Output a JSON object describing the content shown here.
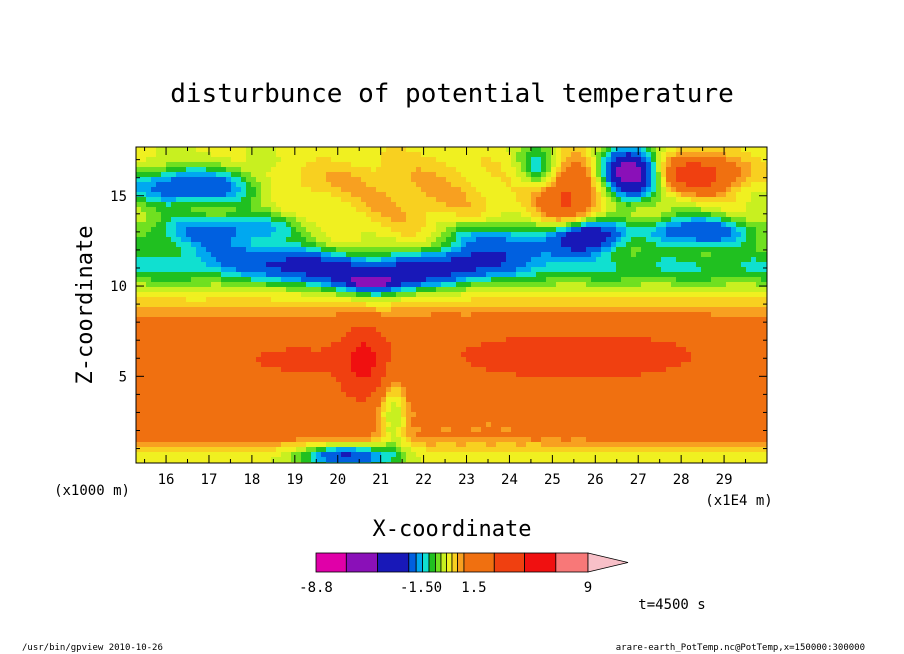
{
  "chart_data": {
    "type": "heatmap",
    "title": "disturbunce of potential temperature",
    "xlabel": "X-coordinate",
    "ylabel": "Z-coordinate",
    "x_unit_label": "(x1E4 m)",
    "y_unit_label": "(x1000 m)",
    "xlim": [
      15.3,
      30.0
    ],
    "ylim": [
      0.2,
      17.7
    ],
    "x_ticks": [
      16,
      17,
      18,
      19,
      20,
      21,
      22,
      23,
      24,
      25,
      26,
      27,
      28,
      29
    ],
    "y_ticks": [
      5,
      10,
      15
    ],
    "time_label": "t=4500 s",
    "colorbar": {
      "levels": [
        -8.8,
        -7,
        -5,
        -3.5,
        -2.5,
        -2,
        -1.5,
        -1,
        -0.5,
        0,
        0.5,
        1,
        1.5,
        3,
        5,
        7,
        9
      ],
      "colors": [
        "#e000a8",
        "#8a10b8",
        "#1818b8",
        "#0060e0",
        "#00a8f0",
        "#10e0d0",
        "#20c020",
        "#70e020",
        "#c8f020",
        "#f0f020",
        "#f8d020",
        "#f8a020",
        "#f07010",
        "#f04010",
        "#f01010",
        "#f87878",
        "#f8c0c8"
      ],
      "tick_labels": [
        "-8.8",
        "-1.50",
        "1.5",
        "9"
      ]
    },
    "features": [
      {
        "kind": "warm-layer",
        "zmin": 1.5,
        "zmax": 8.5,
        "value": 1.5
      },
      {
        "kind": "warm-core",
        "x": 26.0,
        "z": 6.5,
        "value": 3.0
      },
      {
        "kind": "hot-spot",
        "x": 20.6,
        "z": 5.8,
        "value": 5.0
      },
      {
        "kind": "cold-band",
        "x": 20.8,
        "z": 10.2,
        "value": -3.5
      },
      {
        "kind": "cold-cell",
        "x": 16.5,
        "z": 15.5,
        "value": -3.5
      },
      {
        "kind": "cold-cell",
        "x": 25.8,
        "z": 12.8,
        "value": -5.0
      },
      {
        "kind": "cold-cell",
        "x": 26.8,
        "z": 16.2,
        "value": -7.0
      },
      {
        "kind": "warm-cell",
        "x": 28.3,
        "z": 16.2,
        "value": 3.0
      },
      {
        "kind": "warm-cell",
        "x": 25.5,
        "z": 15.8,
        "value": 1.5
      }
    ]
  },
  "footer": {
    "left": "/usr/bin/gpview  2010-10-26",
    "right": "arare-earth_PotTemp.nc@PotTemp,x=150000:300000"
  }
}
